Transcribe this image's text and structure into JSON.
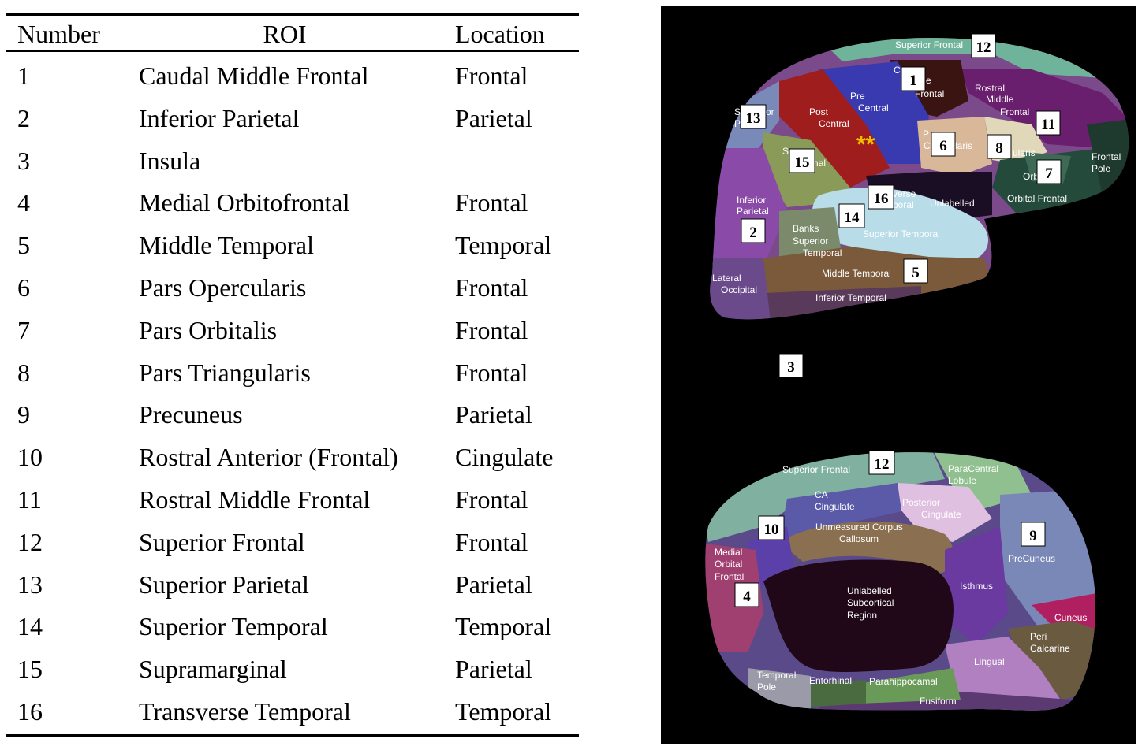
{
  "table": {
    "headers": {
      "number": "Number",
      "roi": "ROI",
      "location": "Location"
    },
    "rows": [
      {
        "number": "1",
        "roi": "Caudal Middle Frontal",
        "location": "Frontal"
      },
      {
        "number": "2",
        "roi": "Inferior Parietal",
        "location": "Parietal"
      },
      {
        "number": "3",
        "roi": "Insula",
        "location": ""
      },
      {
        "number": "4",
        "roi": "Medial Orbitofrontal",
        "location": "Frontal"
      },
      {
        "number": "5",
        "roi": "Middle Temporal",
        "location": "Temporal"
      },
      {
        "number": "6",
        "roi": "Pars Opercularis",
        "location": "Frontal"
      },
      {
        "number": "7",
        "roi": "Pars Orbitalis",
        "location": "Frontal"
      },
      {
        "number": "8",
        "roi": "Pars Triangularis",
        "location": "Frontal"
      },
      {
        "number": "9",
        "roi": "Precuneus",
        "location": "Parietal"
      },
      {
        "number": "10",
        "roi": "Rostral Anterior (Frontal)",
        "location": "Cingulate"
      },
      {
        "number": "11",
        "roi": "Rostral Middle Frontal",
        "location": "Frontal"
      },
      {
        "number": "12",
        "roi": "Superior Frontal",
        "location": "Frontal"
      },
      {
        "number": "13",
        "roi": "Superior Parietal",
        "location": "Parietal"
      },
      {
        "number": "14",
        "roi": "Superior Temporal",
        "location": "Temporal"
      },
      {
        "number": "15",
        "roi": "Supramarginal",
        "location": "Parietal"
      },
      {
        "number": "16",
        "roi": "Transverse Temporal",
        "location": "Temporal"
      }
    ]
  },
  "lateral_view": {
    "region_labels": {
      "superior_frontal": "Superior Frontal",
      "caudal_c": "C",
      "caudal_e": "e",
      "caudal_frontal": "Frontal",
      "pre": "Pre",
      "central_1": "Central",
      "post": "Post",
      "central_2": "Central",
      "rostral": "Rostral",
      "middle": "Middle",
      "frontal": "Frontal",
      "superior_s": "S",
      "superior_or": "or",
      "superior_p": "P",
      "opercularis_c": "C",
      "opercularis_p": "P",
      "opercularis_laris": "laris",
      "triangularis": "ularis",
      "frontal_pole_1": "Frontal",
      "frontal_pole_2": "Pole",
      "orbitalis": "Orb",
      "orbital_frontal": "Orbital Frontal",
      "supramarginal_s": "S",
      "supramarginal_nal": "nal",
      "transverse": "verse",
      "poral": "poral",
      "unlabelled": "Unlabelled",
      "inferior": "Inferior",
      "parietal": "Parietal",
      "banks": "Banks",
      "superior": "Superior",
      "temporal": "Temporal",
      "superior_temporal": "Superior Temporal",
      "lateral": "Lateral",
      "occipital": "Occipital",
      "middle_temporal": "Middle Temporal",
      "inferior_temporal": "Inferior Temporal",
      "asterisks": "**"
    },
    "numbers": {
      "n1": "1",
      "n2": "2",
      "n3": "3",
      "n5": "5",
      "n6": "6",
      "n7": "7",
      "n8": "8",
      "n11": "11",
      "n12": "12",
      "n13": "13",
      "n14": "14",
      "n15": "15",
      "n16": "16"
    }
  },
  "medial_view": {
    "region_labels": {
      "superior_frontal": "Superior Frontal",
      "paracentral_1": "ParaCentral",
      "paracentral_2": "Lobule",
      "ca": "CA",
      "cingulate": "Cingulate",
      "posterior": "Posterior",
      "posterior_cingulate": "Cingulate",
      "unmeasured_1": "Unmeasured Corpus",
      "unmeasured_2": "Callosum",
      "medial": "Medial",
      "orbital": "Orbital",
      "frontal": "Frontal",
      "precuneus": "PreCuneus",
      "isthmus": "Isthmus",
      "unlabelled_1": "Unlabelled",
      "unlabelled_2": "Subcortical",
      "unlabelled_3": "Region",
      "cuneus": "Cuneus",
      "peri": "Peri",
      "calcarine": "Calcarine",
      "lingual": "Lingual",
      "temporal_1": "Temporal",
      "temporal_2": "Pole",
      "entorhinal": "Entorhinal",
      "parahippocampal": "Parahippocamal",
      "fusiform": "Fusiform"
    },
    "numbers": {
      "n4": "4",
      "n9": "9",
      "n10": "10",
      "n12": "12"
    }
  }
}
